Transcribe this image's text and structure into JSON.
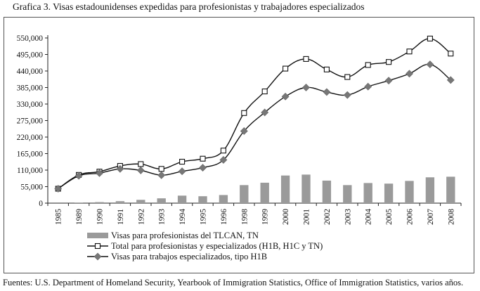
{
  "title": "Grafica 3. Visas estadounidenses expedidas para profesionistas y trabajadores especializados",
  "source": "Fuentes: U.S. Department of Homeland Security, Yearbook of Immigration Statistics, Office of Immigration Statistics, varios años.",
  "chart_data": {
    "type": "bar",
    "categories": [
      "1985",
      "1989",
      "1990",
      "1991",
      "1992",
      "1993",
      "1994",
      "1995",
      "1996",
      "1998",
      "1999",
      "2000",
      "2001",
      "2002",
      "2003",
      "2004",
      "2005",
      "2006",
      "2007",
      "2008"
    ],
    "ylim": [
      0,
      550000
    ],
    "yticks": [
      0,
      55000,
      110000,
      165000,
      220000,
      275000,
      330000,
      385000,
      440000,
      495000,
      550000
    ],
    "ytick_labels": [
      "0",
      "55,000",
      "110,000",
      "165,000",
      "220,000",
      "275,000",
      "330,000",
      "385,000",
      "440,000",
      "495,000",
      "550,000"
    ],
    "grid": false,
    "legend_position": "bottom",
    "series": [
      {
        "name": "Visas para profesionistas del TLCAN, TN",
        "kind": "bar",
        "color": "#9a9a9a",
        "values": [
          0,
          2000,
          3500,
          6500,
          11000,
          16000,
          25000,
          23000,
          27000,
          60000,
          68000,
          92000,
          95000,
          75000,
          60000,
          67000,
          65000,
          74000,
          86000,
          88000
        ]
      },
      {
        "name": "Total para profesionistas  y especializados (H1B, H1C y TN)",
        "kind": "line",
        "marker": "open-square",
        "color": "#111111",
        "values": [
          48000,
          94000,
          105000,
          124000,
          130000,
          114000,
          138000,
          148000,
          175000,
          300000,
          372000,
          448000,
          480000,
          445000,
          420000,
          460000,
          470000,
          505000,
          548000,
          498000
        ]
      },
      {
        "name": "Visas para trabajos especializados, tipo H1B",
        "kind": "line",
        "marker": "diamond",
        "color": "#777777",
        "values": [
          48000,
          91000,
          100000,
          114000,
          109000,
          93000,
          106000,
          118000,
          144000,
          240000,
          302000,
          355000,
          385000,
          370000,
          360000,
          388000,
          408000,
          431000,
          462000,
          410000
        ]
      }
    ]
  }
}
